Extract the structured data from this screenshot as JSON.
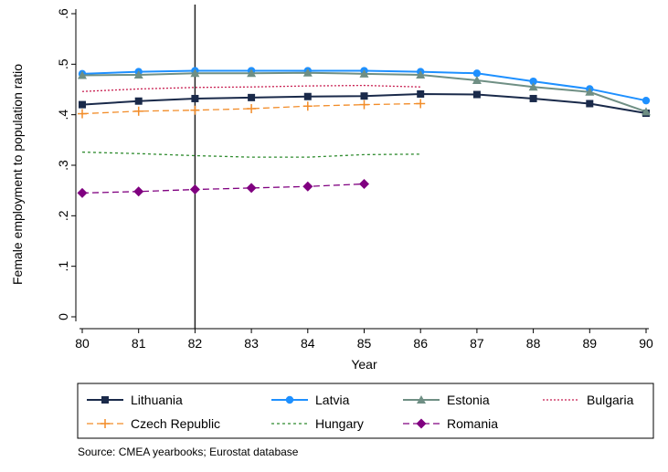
{
  "chart_data": {
    "type": "line",
    "ylabel": "Female employment to population ratio",
    "xlabel": "Year",
    "x_ticks": [
      "80",
      "81",
      "82",
      "83",
      "84",
      "85",
      "86",
      "87",
      "88",
      "89",
      "90"
    ],
    "y_ticks": [
      "0",
      ".1",
      ".2",
      ".3",
      ".4",
      ".5",
      ".6"
    ],
    "xlim": [
      80,
      90
    ],
    "ylim": [
      0,
      0.6
    ],
    "reference_line_x": 82,
    "series": [
      {
        "name": "Lithuania",
        "color": "#1a2a4a",
        "dash": "solid",
        "marker": "square",
        "x": [
          80,
          81,
          82,
          83,
          84,
          85,
          86,
          87,
          88,
          89,
          90
        ],
        "values": [
          0.42,
          0.427,
          0.432,
          0.434,
          0.436,
          0.437,
          0.441,
          0.44,
          0.432,
          0.422,
          0.403
        ]
      },
      {
        "name": "Latvia",
        "color": "#1e90ff",
        "dash": "solid",
        "marker": "circle",
        "x": [
          80,
          81,
          82,
          83,
          84,
          85,
          86,
          87,
          88,
          89,
          90
        ],
        "values": [
          0.481,
          0.485,
          0.487,
          0.487,
          0.487,
          0.487,
          0.485,
          0.482,
          0.466,
          0.451,
          0.428
        ]
      },
      {
        "name": "Estonia",
        "color": "#6f8f84",
        "dash": "solid",
        "marker": "triangle",
        "x": [
          80,
          81,
          82,
          83,
          84,
          85,
          86,
          87,
          88,
          89,
          90
        ],
        "values": [
          0.478,
          0.479,
          0.482,
          0.482,
          0.483,
          0.481,
          0.479,
          0.468,
          0.455,
          0.445,
          0.406
        ]
      },
      {
        "name": "Bulgaria",
        "color": "#c81e50",
        "dash": "2,2",
        "marker": "none",
        "x": [
          80,
          81,
          82,
          83,
          84,
          85,
          86
        ],
        "values": [
          0.446,
          0.451,
          0.454,
          0.455,
          0.457,
          0.458,
          0.455
        ]
      },
      {
        "name": "Czech Republic",
        "color": "#f28c28",
        "dash": "7,4",
        "marker": "plus",
        "x": [
          80,
          81,
          82,
          83,
          84,
          85,
          86
        ],
        "values": [
          0.402,
          0.407,
          0.409,
          0.412,
          0.417,
          0.42,
          0.422
        ]
      },
      {
        "name": "Hungary",
        "color": "#2e8b2e",
        "dash": "3,3",
        "marker": "none",
        "x": [
          80,
          81,
          82,
          83,
          84,
          85,
          86
        ],
        "values": [
          0.326,
          0.323,
          0.319,
          0.316,
          0.316,
          0.321,
          0.322
        ]
      },
      {
        "name": "Romania",
        "color": "#800080",
        "dash": "7,4",
        "marker": "diamond",
        "x": [
          80,
          81,
          82,
          83,
          84,
          85
        ],
        "values": [
          0.245,
          0.248,
          0.252,
          0.255,
          0.258,
          0.263
        ]
      }
    ],
    "legend_rows": [
      [
        "Lithuania",
        "Latvia",
        "Estonia",
        "Bulgaria"
      ],
      [
        "Czech Republic",
        "Hungary",
        "Romania"
      ]
    ],
    "legend_placement": "bottom",
    "grid": false
  },
  "source_note": "Source: CMEA yearbooks; Eurostat database"
}
